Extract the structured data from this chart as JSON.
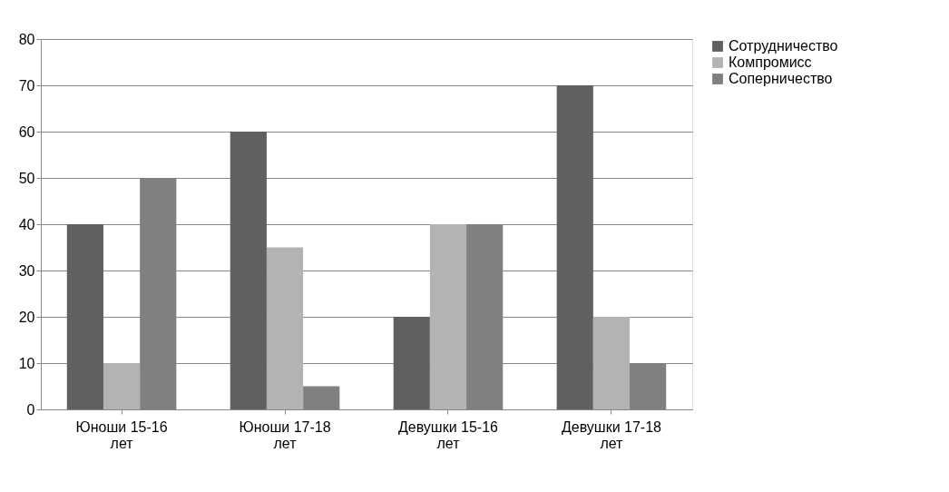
{
  "chart_data": {
    "type": "bar",
    "categories": [
      "Юноши 15-16 лет",
      "Юноши 17-18 лет",
      "Девушки 15-16 лет",
      "Девушки 17-18 лет"
    ],
    "series": [
      {
        "name": "Сотрудничество",
        "color": "#606060",
        "values": [
          40,
          60,
          20,
          70
        ]
      },
      {
        "name": "Компромисс",
        "color": "#b3b3b3",
        "values": [
          10,
          35,
          40,
          20
        ]
      },
      {
        "name": "Соперничество",
        "color": "#808080",
        "values": [
          50,
          5,
          40,
          10
        ]
      }
    ],
    "ylim": [
      0,
      80
    ],
    "yticks": [
      0,
      10,
      20,
      30,
      40,
      50,
      60,
      70,
      80
    ],
    "grid": "y",
    "legend": "right"
  }
}
